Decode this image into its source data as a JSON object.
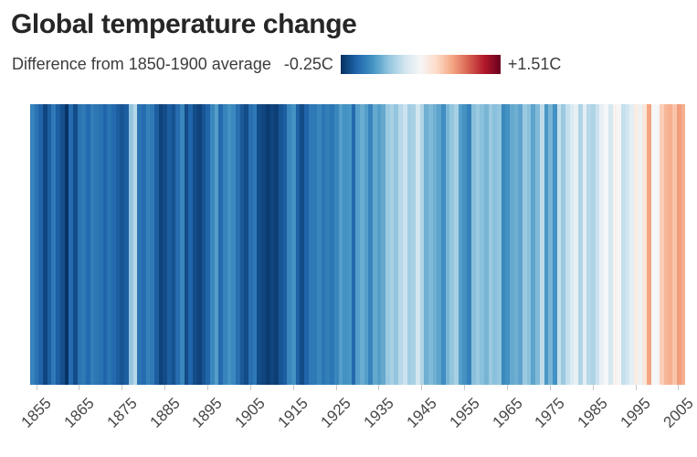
{
  "title": "Global temperature change",
  "subtitle": "Difference from 1850-1900 average",
  "legend": {
    "min_label": "-0.25C",
    "max_label": "+1.51C"
  },
  "chart_data": {
    "type": "heatmap",
    "title": "Global temperature change",
    "subtitle": "Difference from 1850-1900 average",
    "baseline_period": "1850-1900",
    "unit": "C",
    "color_domain": [
      -0.25,
      1.51
    ],
    "colormap_stops": [
      "#053061",
      "#2166ac",
      "#4393c3",
      "#92c5de",
      "#d1e5f0",
      "#f7f7f7",
      "#fddbc7",
      "#f4a582",
      "#d6604f",
      "#b2182b",
      "#67001f"
    ],
    "year_start": 1854,
    "year_end": 2006,
    "x_tick_years": [
      1855,
      1865,
      1875,
      1885,
      1895,
      1905,
      1915,
      1925,
      1935,
      1945,
      1955,
      1965,
      1975,
      1985,
      1995,
      2005
    ],
    "anomalies_c": [
      0.04,
      -0.02,
      -0.08,
      -0.18,
      -0.1,
      0.0,
      -0.1,
      -0.15,
      -0.24,
      -0.05,
      -0.16,
      -0.02,
      0.0,
      -0.06,
      0.02,
      -0.01,
      -0.03,
      -0.08,
      -0.02,
      -0.06,
      -0.1,
      -0.13,
      -0.1,
      0.28,
      0.38,
      -0.02,
      -0.05,
      0.03,
      0.0,
      -0.1,
      -0.19,
      -0.16,
      -0.1,
      -0.14,
      -0.05,
      0.05,
      -0.16,
      -0.08,
      -0.16,
      -0.19,
      -0.13,
      -0.08,
      0.06,
      0.14,
      -0.06,
      0.04,
      0.1,
      0.06,
      -0.04,
      -0.12,
      -0.16,
      -0.04,
      0.0,
      -0.16,
      -0.18,
      -0.21,
      -0.18,
      -0.2,
      -0.13,
      -0.1,
      0.05,
      0.1,
      -0.09,
      -0.16,
      -0.08,
      0.0,
      0.0,
      0.05,
      -0.01,
      0.02,
      -0.01,
      0.05,
      0.14,
      0.1,
      0.11,
      -0.06,
      0.14,
      0.19,
      0.14,
      0.04,
      0.18,
      0.14,
      0.18,
      0.3,
      0.34,
      0.28,
      0.38,
      0.44,
      0.32,
      0.34,
      0.46,
      0.36,
      0.2,
      0.24,
      0.2,
      0.16,
      0.08,
      0.22,
      0.28,
      0.34,
      0.14,
      0.1,
      0.03,
      0.26,
      0.3,
      0.26,
      0.22,
      0.3,
      0.26,
      0.28,
      0.06,
      0.1,
      0.18,
      0.2,
      0.16,
      0.3,
      0.26,
      0.16,
      0.24,
      0.4,
      0.12,
      0.22,
      0.1,
      0.42,
      0.3,
      0.42,
      0.5,
      0.56,
      0.36,
      0.54,
      0.38,
      0.36,
      0.44,
      0.56,
      0.62,
      0.48,
      0.66,
      0.64,
      0.42,
      0.46,
      0.54,
      0.7,
      0.58,
      0.74,
      0.98,
      0.62,
      0.62,
      0.85,
      0.92,
      0.95,
      0.88,
      1.0,
      0.95
    ]
  }
}
